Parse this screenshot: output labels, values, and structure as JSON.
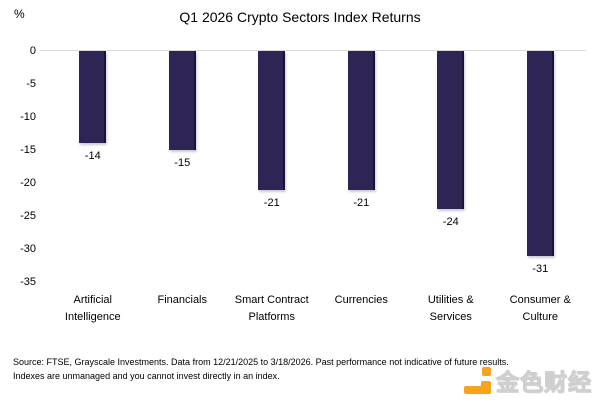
{
  "title": "Q1 2026 Crypto Sectors Index Returns",
  "y_axis": {
    "unit_label": "%",
    "ticks": [
      0,
      -5,
      -10,
      -15,
      -20,
      -25,
      -30,
      -35
    ]
  },
  "chart_data": {
    "type": "bar",
    "title": "Q1 2026 Crypto Sectors Index Returns",
    "categories": [
      "Artificial\nIntelligence",
      "Financials",
      "Smart Contract\nPlatforms",
      "Currencies",
      "Utilities &\nServices",
      "Consumer &\nCulture"
    ],
    "values": [
      -14,
      -15,
      -21,
      -21,
      -24,
      -31
    ],
    "data_labels": [
      "-14",
      "-15",
      "-21",
      "-21",
      "-24",
      "-31"
    ],
    "xlabel": "",
    "ylabel": "%",
    "ylim": [
      -35,
      0
    ],
    "grid": "zero-baseline-only",
    "legend": "none",
    "bar_color": "#2E2554",
    "baseline_color": "#d9d9d9"
  },
  "footer": {
    "line1": "Source: FTSE, Grayscale Investments. Data from 12/21/2025 to 3/18/2026. Past performance not indicative of future results.",
    "line2": "Indexes are unmanaged and you cannot invest directly in an index."
  },
  "watermark": {
    "text": "金色财经"
  }
}
